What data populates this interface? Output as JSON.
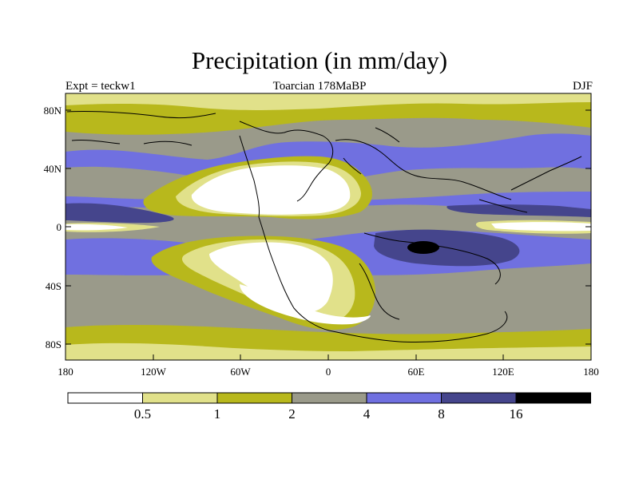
{
  "title": "Precipitation (in mm/day)",
  "subtitle_left": "Expt = teckw1",
  "subtitle_center": "Toarcian 178MaBP",
  "subtitle_right": "DJF",
  "lat_labels": [
    "80N",
    "40N",
    "0",
    "40S",
    "80S"
  ],
  "lon_labels": [
    "180",
    "120W",
    "60W",
    "0",
    "60E",
    "120E",
    "180"
  ],
  "colorbar": {
    "thresholds": [
      "0.5",
      "1",
      "2",
      "4",
      "8",
      "16"
    ],
    "colors": [
      "#ffffff",
      "#e1e18a",
      "#b8b81c",
      "#9a9a8a",
      "#7070e0",
      "#45458c",
      "#000000"
    ]
  }
}
